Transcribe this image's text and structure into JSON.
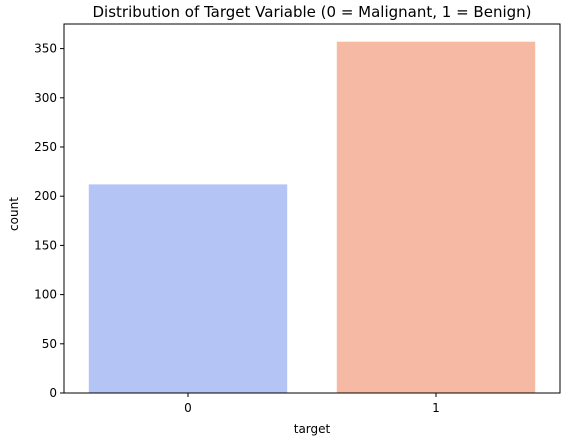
{
  "chart_data": {
    "type": "bar",
    "title": "Distribution of Target Variable (0 = Malignant, 1 = Benign)",
    "xlabel": "target",
    "ylabel": "count",
    "categories": [
      "0",
      "1"
    ],
    "values": [
      212,
      357
    ],
    "ylim": [
      0,
      375
    ],
    "yticks": [
      0,
      50,
      100,
      150,
      200,
      250,
      300,
      350
    ],
    "grid": false,
    "legend": "none",
    "colors": [
      "#b4c4f4",
      "#f6baa4"
    ]
  }
}
